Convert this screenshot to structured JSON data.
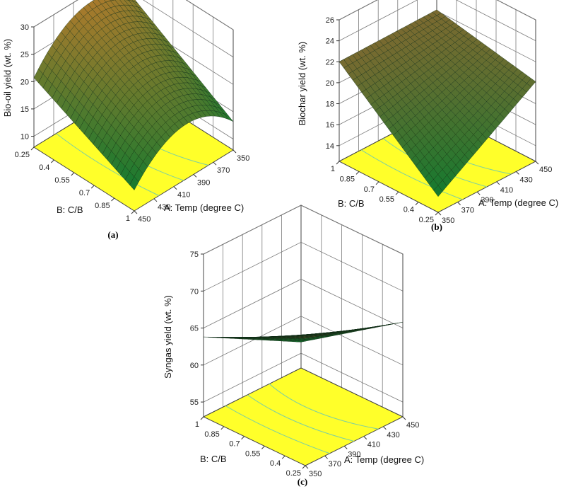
{
  "chart_data": [
    {
      "type": "surface3d",
      "caption": "(a)",
      "zlabel": "Bio-oil yield (wt. %)",
      "xlabel": "A: Temp (degree C)",
      "ylabel": "B: C/B",
      "zticks": [
        "10",
        "15",
        "20",
        "25",
        "30"
      ],
      "xticks": [
        "350",
        "370",
        "390",
        "410",
        "430",
        "450"
      ],
      "yticks": [
        "0.25",
        "0.4",
        "0.55",
        "0.7",
        "0.85",
        "1"
      ],
      "zlim": [
        8,
        30
      ],
      "surface_corners": {
        "T350_CB0.25": 24.3,
        "T450_CB0.25": 20.7,
        "T350_CB1": 13.2,
        "T450_CB1": 11.8
      },
      "surface_peak": {
        "temp": 400,
        "z": 25.0
      },
      "colors": {
        "surface_high": "#a87a2c",
        "surface_low": "#127a2f",
        "floor": "#ffff2a",
        "contour": "#7fd0a0"
      }
    },
    {
      "type": "surface3d",
      "caption": "(b)",
      "zlabel": "Biochar yield (wt. %)",
      "xlabel": "A: Temp (degree C)",
      "ylabel": "B: C/B",
      "zticks": [
        "14",
        "16",
        "18",
        "20",
        "22",
        "24",
        "26"
      ],
      "xticks": [
        "350",
        "370",
        "390",
        "410",
        "430",
        "450"
      ],
      "yticks": [
        "0.25",
        "0.4",
        "0.55",
        "0.7",
        "0.85",
        "1"
      ],
      "zlim": [
        12.5,
        26
      ],
      "surface_corners": {
        "T350_CB0.25": 14.0,
        "T450_CB0.25": 20.1,
        "T350_CB1": 22.0,
        "T450_CB1": 22.1
      },
      "colors": {
        "surface_high": "#7a6a30",
        "surface_low": "#127a2f",
        "floor": "#ffff2a",
        "contour": "#7fd0a0"
      }
    },
    {
      "type": "surface3d",
      "caption": "(c)",
      "zlabel": "Syngas yield (wt. %)",
      "xlabel": "A: Temp (degree C)",
      "ylabel": "B: C/B",
      "zticks": [
        "55",
        "60",
        "65",
        "70",
        "75"
      ],
      "xticks": [
        "350",
        "370",
        "390",
        "410",
        "430",
        "450"
      ],
      "yticks": [
        "0.25",
        "0.4",
        "0.55",
        "0.7",
        "0.85",
        "1"
      ],
      "zlim": [
        53,
        75
      ],
      "surface_corners": {
        "T350_CB0.25": 70.2,
        "T450_CB0.25": 65.8,
        "T350_CB1": 63.8,
        "T450_CB1": 56.5
      },
      "colors": {
        "surface_high": "#6a5a30",
        "surface_low": "#127a2f",
        "floor": "#ffff2a",
        "contour": "#7fd0a0"
      }
    }
  ]
}
